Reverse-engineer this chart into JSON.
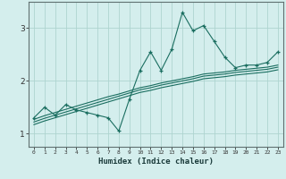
{
  "xlabel": "Humidex (Indice chaleur)",
  "bg_color": "#d4eeed",
  "grid_color": "#aed4d0",
  "line_color": "#1a6e60",
  "x_values": [
    0,
    1,
    2,
    3,
    4,
    5,
    6,
    7,
    8,
    9,
    10,
    11,
    12,
    13,
    14,
    15,
    16,
    17,
    18,
    19,
    20,
    21,
    22,
    23
  ],
  "jagged_y": [
    1.3,
    1.5,
    1.35,
    1.55,
    1.45,
    1.4,
    1.35,
    1.3,
    1.05,
    1.65,
    2.2,
    2.55,
    2.2,
    2.6,
    3.3,
    2.95,
    3.05,
    2.75,
    2.45,
    2.25,
    2.3,
    2.3,
    2.35,
    2.55
  ],
  "line1_y": [
    1.27,
    1.34,
    1.4,
    1.46,
    1.52,
    1.58,
    1.64,
    1.7,
    1.75,
    1.81,
    1.87,
    1.91,
    1.96,
    2.0,
    2.04,
    2.08,
    2.13,
    2.15,
    2.17,
    2.2,
    2.22,
    2.24,
    2.26,
    2.3
  ],
  "line2_y": [
    1.22,
    1.29,
    1.35,
    1.41,
    1.47,
    1.53,
    1.59,
    1.65,
    1.71,
    1.77,
    1.83,
    1.87,
    1.92,
    1.96,
    2.0,
    2.04,
    2.09,
    2.11,
    2.13,
    2.16,
    2.18,
    2.2,
    2.22,
    2.26
  ],
  "line3_y": [
    1.17,
    1.24,
    1.3,
    1.36,
    1.42,
    1.48,
    1.54,
    1.6,
    1.66,
    1.72,
    1.78,
    1.82,
    1.87,
    1.91,
    1.95,
    1.99,
    2.04,
    2.06,
    2.08,
    2.11,
    2.13,
    2.15,
    2.17,
    2.21
  ],
  "ylim": [
    0.75,
    3.5
  ],
  "yticks": [
    1,
    2,
    3
  ],
  "xticks": [
    0,
    1,
    2,
    3,
    4,
    5,
    6,
    7,
    8,
    9,
    10,
    11,
    12,
    13,
    14,
    15,
    16,
    17,
    18,
    19,
    20,
    21,
    22,
    23
  ]
}
